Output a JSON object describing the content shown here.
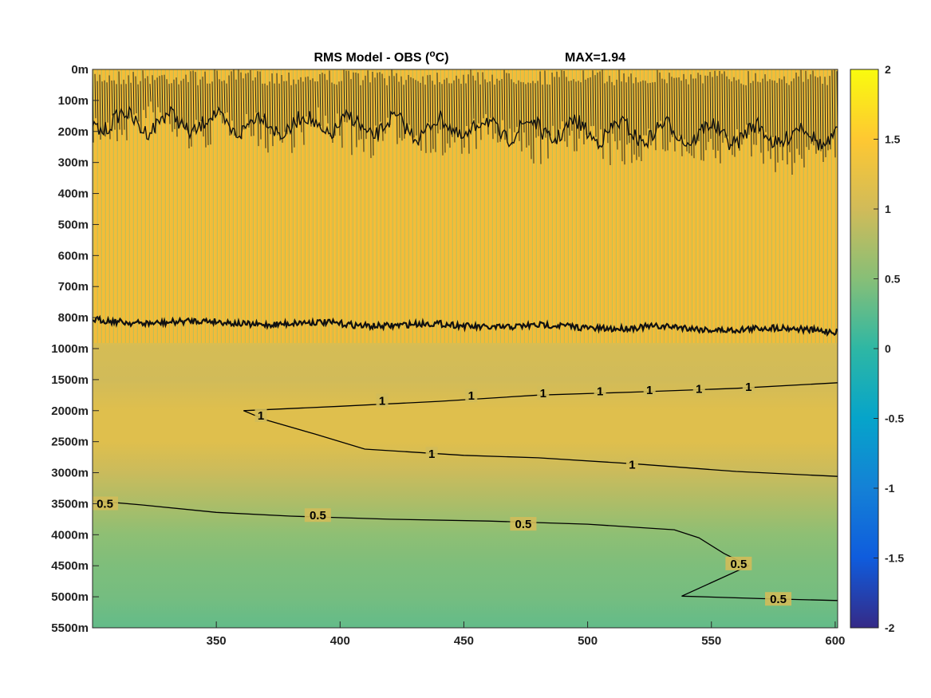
{
  "chart_data": {
    "type": "heatmap",
    "title": "RMS Model - OBS (",
    "title_sup": "o",
    "title_unit_tail": "C)",
    "max_label": "MAX=1.94",
    "x": {
      "min": 300,
      "max": 601,
      "ticks": [
        350,
        400,
        450,
        500,
        550,
        600
      ],
      "tick_labels": [
        "350",
        "400",
        "450",
        "500",
        "550",
        "600"
      ]
    },
    "y": {
      "tick_labels": [
        "0m",
        "100m",
        "200m",
        "300m",
        "400m",
        "500m",
        "600m",
        "700m",
        "800m",
        "1000m",
        "1500m",
        "2000m",
        "2500m",
        "3000m",
        "3500m",
        "4000m",
        "4500m",
        "5000m",
        "5500m"
      ],
      "reversed": true,
      "note_scale": "piecewise: 100 m steps to 800 m, then 500 m steps"
    },
    "colorbar": {
      "colormap": "parula",
      "range": [
        -2,
        2
      ],
      "ticks": [
        2,
        1.5,
        1,
        0.5,
        0,
        -0.5,
        -1,
        -1.5,
        -2
      ],
      "tick_labels": [
        "2",
        "1.5",
        "1",
        "0.5",
        "0",
        "-0.5",
        "-1",
        "-1.5",
        "-2"
      ],
      "stops": [
        "#352a87",
        "#0f5cdd",
        "#1481d6",
        "#06a4ca",
        "#2eb7a4",
        "#87bf77",
        "#d1bb59",
        "#fec832",
        "#f9fb0e"
      ]
    },
    "field_profile": {
      "depths_m": [
        0,
        800,
        900,
        1000,
        1500,
        2000,
        2500,
        3000,
        3500,
        4000,
        4500,
        5000,
        5500
      ],
      "values": [
        1.3,
        1.3,
        1.15,
        1.05,
        1.0,
        1.15,
        1.15,
        0.95,
        0.75,
        0.55,
        0.45,
        0.4,
        0.3
      ]
    },
    "contours": [
      {
        "level": "1",
        "points": [
          [
            601,
            1550
          ],
          [
            560,
            1640
          ],
          [
            520,
            1700
          ],
          [
            480,
            1750
          ],
          [
            440,
            1850
          ],
          [
            400,
            1930
          ],
          [
            361,
            2000
          ],
          [
            370,
            2150
          ],
          [
            390,
            2380
          ],
          [
            410,
            2620
          ],
          [
            450,
            2720
          ],
          [
            480,
            2760
          ],
          [
            520,
            2860
          ],
          [
            560,
            2980
          ],
          [
            601,
            3060
          ]
        ],
        "labels": [
          [
            417,
            1840
          ],
          [
            453,
            1760
          ],
          [
            482,
            1720
          ],
          [
            505,
            1690
          ],
          [
            525,
            1670
          ],
          [
            545,
            1650
          ],
          [
            565,
            1620
          ],
          [
            368,
            2080
          ],
          [
            437,
            2700
          ],
          [
            518,
            2870
          ]
        ]
      },
      {
        "level": "0.5",
        "points": [
          [
            300,
            3450
          ],
          [
            320,
            3520
          ],
          [
            350,
            3640
          ],
          [
            380,
            3700
          ],
          [
            420,
            3750
          ],
          [
            460,
            3780
          ],
          [
            500,
            3830
          ],
          [
            535,
            3920
          ],
          [
            545,
            4050
          ],
          [
            555,
            4300
          ],
          [
            565,
            4500
          ],
          [
            538,
            4990
          ],
          [
            570,
            5030
          ],
          [
            601,
            5060
          ]
        ],
        "labels": [
          [
            305,
            3500
          ],
          [
            391,
            3690
          ],
          [
            474,
            3830
          ],
          [
            561,
            4470
          ],
          [
            577,
            5040
          ]
        ]
      }
    ],
    "bands": [
      {
        "name": "shallow noisy contour",
        "depth_center_m": 180
      },
      {
        "name": "900 m noisy contour",
        "depth_center_m": 900
      }
    ]
  }
}
